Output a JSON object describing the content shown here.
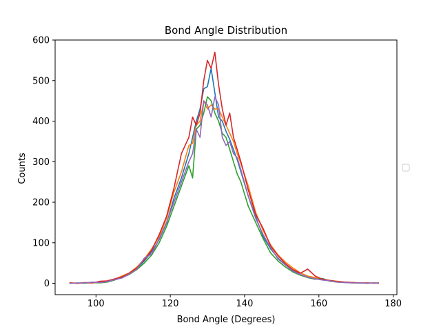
{
  "chart_data": {
    "type": "line",
    "title": "Bond Angle Distribution",
    "xlabel": "Bond Angle (Degrees)",
    "ylabel": "Counts",
    "xlim": [
      89,
      181
    ],
    "ylim": [
      -28,
      600
    ],
    "xticks": [
      100,
      120,
      140,
      160,
      180
    ],
    "yticks": [
      0,
      100,
      200,
      300,
      400,
      500,
      600
    ],
    "grid": false,
    "legend": "right (empty)",
    "series": [
      {
        "color": "#1f77b4",
        "x": [
          93,
          95,
          97,
          99,
          101,
          103,
          105,
          107,
          109,
          111,
          113,
          115,
          117,
          119,
          121,
          123,
          125,
          126,
          127,
          128,
          129,
          130,
          131,
          132,
          133,
          134,
          135,
          136,
          137,
          138,
          139,
          141,
          143,
          145,
          147,
          149,
          151,
          153,
          155,
          157,
          159,
          161,
          163,
          165,
          167,
          169,
          171,
          173,
          175,
          176
        ],
        "y": [
          1,
          0,
          1,
          2,
          3,
          4,
          9,
          15,
          24,
          36,
          55,
          78,
          108,
          148,
          210,
          260,
          320,
          360,
          400,
          430,
          480,
          485,
          530,
          470,
          410,
          400,
          375,
          355,
          330,
          305,
          275,
          215,
          165,
          115,
          85,
          62,
          45,
          32,
          22,
          16,
          12,
          9,
          6,
          4,
          3,
          2,
          1,
          1,
          1,
          1
        ]
      },
      {
        "color": "#ff7f0e",
        "x": [
          93,
          95,
          97,
          99,
          101,
          103,
          105,
          107,
          109,
          111,
          113,
          115,
          117,
          119,
          121,
          123,
          125,
          126,
          127,
          128,
          129,
          130,
          131,
          132,
          133,
          134,
          135,
          136,
          137,
          138,
          139,
          141,
          143,
          145,
          147,
          149,
          151,
          153,
          155,
          157,
          159,
          161,
          163,
          165,
          167,
          169,
          171,
          173,
          175,
          176
        ],
        "y": [
          2,
          0,
          1,
          1,
          2,
          5,
          10,
          18,
          26,
          40,
          60,
          85,
          115,
          160,
          225,
          275,
          340,
          345,
          390,
          400,
          450,
          430,
          440,
          430,
          430,
          410,
          390,
          370,
          350,
          320,
          295,
          240,
          175,
          130,
          95,
          70,
          52,
          38,
          26,
          18,
          14,
          10,
          7,
          5,
          3,
          2,
          1,
          1,
          1,
          1
        ]
      },
      {
        "color": "#2ca02c",
        "x": [
          93,
          95,
          97,
          99,
          101,
          103,
          105,
          107,
          109,
          111,
          113,
          115,
          117,
          119,
          121,
          123,
          125,
          126,
          127,
          128,
          129,
          130,
          131,
          132,
          133,
          134,
          135,
          136,
          137,
          138,
          139,
          141,
          143,
          145,
          147,
          149,
          151,
          153,
          155,
          157,
          159,
          161,
          163,
          165,
          167,
          169,
          171,
          173,
          175,
          176
        ],
        "y": [
          0,
          1,
          0,
          2,
          1,
          3,
          8,
          14,
          22,
          34,
          50,
          70,
          100,
          140,
          190,
          240,
          290,
          260,
          380,
          390,
          420,
          460,
          450,
          420,
          400,
          370,
          360,
          330,
          300,
          270,
          250,
          190,
          150,
          110,
          75,
          55,
          40,
          28,
          20,
          14,
          10,
          12,
          5,
          3,
          2,
          1,
          1,
          0,
          1,
          0
        ]
      },
      {
        "color": "#d62728",
        "x": [
          93,
          95,
          97,
          99,
          101,
          103,
          105,
          107,
          109,
          111,
          113,
          115,
          117,
          119,
          121,
          123,
          125,
          126,
          127,
          128,
          129,
          130,
          131,
          132,
          133,
          134,
          135,
          136,
          137,
          138,
          139,
          141,
          143,
          145,
          147,
          149,
          151,
          153,
          155,
          157,
          159,
          161,
          163,
          165,
          167,
          169,
          171,
          173,
          175,
          176
        ],
        "y": [
          1,
          0,
          2,
          1,
          5,
          6,
          11,
          16,
          25,
          38,
          58,
          82,
          120,
          165,
          235,
          320,
          360,
          410,
          390,
          420,
          500,
          550,
          530,
          570,
          490,
          430,
          390,
          420,
          360,
          330,
          300,
          230,
          170,
          135,
          92,
          68,
          48,
          34,
          25,
          35,
          18,
          10,
          7,
          4,
          3,
          2,
          1,
          1,
          0,
          1
        ]
      },
      {
        "color": "#9467bd",
        "x": [
          93,
          95,
          97,
          99,
          101,
          103,
          105,
          107,
          109,
          111,
          113,
          115,
          117,
          119,
          121,
          123,
          125,
          126,
          127,
          128,
          129,
          130,
          131,
          132,
          133,
          134,
          135,
          136,
          137,
          138,
          139,
          141,
          143,
          145,
          147,
          149,
          151,
          153,
          155,
          157,
          159,
          161,
          163,
          165,
          167,
          169,
          171,
          173,
          175,
          176
        ],
        "y": [
          0,
          1,
          1,
          3,
          2,
          4,
          9,
          13,
          23,
          35,
          62,
          72,
          110,
          150,
          200,
          250,
          300,
          320,
          380,
          360,
          450,
          440,
          410,
          460,
          440,
          360,
          340,
          350,
          320,
          310,
          280,
          215,
          160,
          120,
          88,
          60,
          45,
          30,
          22,
          15,
          11,
          8,
          6,
          3,
          2,
          1,
          1,
          0,
          1,
          0
        ]
      }
    ]
  }
}
